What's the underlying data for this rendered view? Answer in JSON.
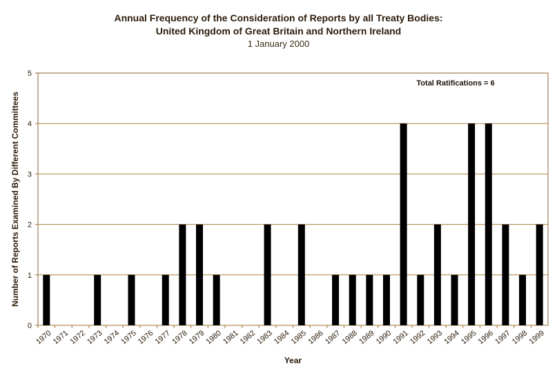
{
  "chart_data": {
    "type": "bar",
    "title_line1": "Annual Frequency of the Consideration of Reports by all Treaty Bodies:",
    "title_line2": "United Kingdom of Great Britain and Northern Ireland",
    "subtitle": "1 January 2000",
    "xlabel": "Year",
    "ylabel": "Number of Reports Examined By Different Committees",
    "annotation": "Total Ratifications = 6",
    "ylim": [
      0,
      5
    ],
    "yticks": [
      0,
      1,
      2,
      3,
      4,
      5
    ],
    "categories": [
      "1970",
      "1971",
      "1972",
      "1973",
      "1974",
      "1975",
      "1976",
      "1977",
      "1978",
      "1979",
      "1980",
      "1981",
      "1982",
      "1983",
      "1984",
      "1985",
      "1986",
      "1987",
      "1988",
      "1989",
      "1990",
      "1991",
      "1992",
      "1993",
      "1994",
      "1995",
      "1996",
      "1997",
      "1998",
      "1999"
    ],
    "values": [
      1,
      0,
      0,
      1,
      0,
      1,
      0,
      1,
      2,
      2,
      1,
      0,
      0,
      2,
      0,
      2,
      0,
      1,
      1,
      1,
      1,
      4,
      1,
      2,
      1,
      4,
      4,
      2,
      1,
      2
    ],
    "colors": {
      "bar": "#000000",
      "grid": "#b08040",
      "axis": "#a07030",
      "border": "#8b6030"
    }
  }
}
